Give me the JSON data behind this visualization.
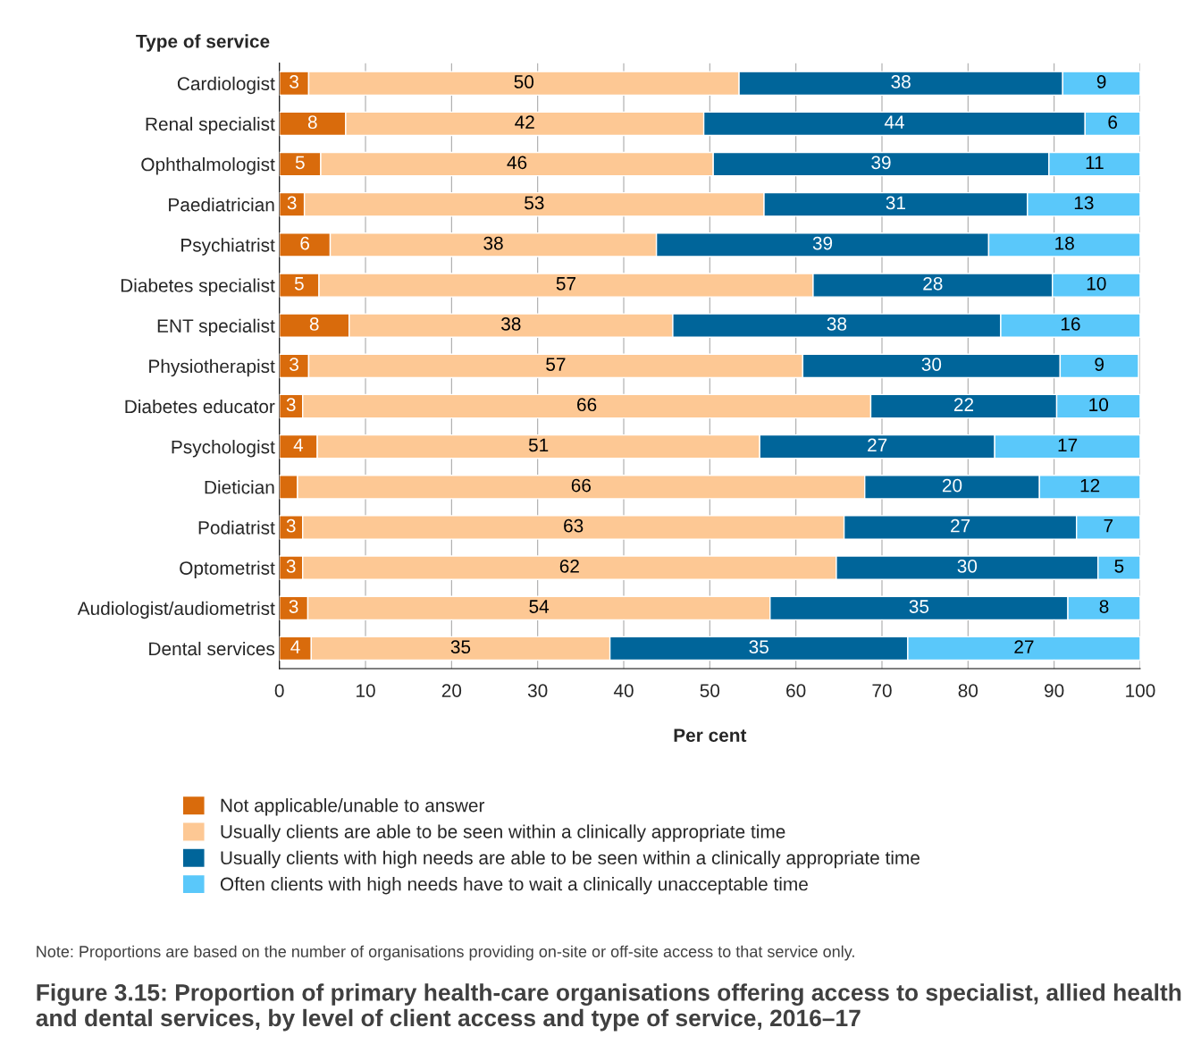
{
  "chart_data": {
    "type": "bar",
    "orientation": "horizontal",
    "stacked": true,
    "title": "Figure 3.15: Proportion of primary health-care organisations offering access to specialist, allied health and dental services, by level of client access and type of service, 2016–17",
    "ylabel": "Type of service",
    "xlabel": "Per cent",
    "categories": [
      "Cardiologist",
      "Renal specialist",
      "Ophthalmologist",
      "Paediatrician",
      "Psychiatrist",
      "Diabetes specialist",
      "ENT specialist",
      "Physiotherapist",
      "Diabetes educator",
      "Psychologist",
      "Dietician",
      "Podiatrist",
      "Optometrist",
      "Audiologist/audiometrist",
      "Dental services"
    ],
    "series": [
      {
        "name": "Not applicable/unable to answer",
        "color": "#d96b0c",
        "values": [
          3.4,
          7.7,
          4.8,
          2.9,
          5.9,
          4.6,
          8.1,
          3.4,
          2.7,
          4.4,
          2.1,
          2.7,
          2.7,
          3.3,
          3.7
        ],
        "value_labels": [
          "3",
          "8",
          "5",
          "3",
          "6",
          "5",
          "8",
          "3",
          "3",
          "4",
          null,
          "3",
          "3",
          "3",
          "4"
        ]
      },
      {
        "name": "Usually clients are able to be seen within a clinically appropriate time",
        "color": "#fdc894",
        "values": [
          50.0,
          41.6,
          45.6,
          53.4,
          37.9,
          57.4,
          37.6,
          57.4,
          66.0,
          51.4,
          65.9,
          62.9,
          62.0,
          53.7,
          34.7
        ],
        "value_labels": [
          "50",
          "42",
          "46",
          "53",
          "38",
          "57",
          "38",
          "57",
          "66",
          "51",
          "66",
          "63",
          "62",
          "54",
          "35"
        ]
      },
      {
        "name": "Usually clients with high needs are able to be seen within a clinically appropriate time",
        "color": "#00659a",
        "values": [
          37.6,
          44.3,
          39.0,
          30.6,
          38.6,
          27.8,
          38.1,
          29.9,
          21.6,
          27.3,
          20.3,
          27.0,
          30.4,
          34.6,
          34.6
        ],
        "value_labels": [
          "38",
          "44",
          "39",
          "31",
          "39",
          "28",
          "38",
          "30",
          "22",
          "27",
          "20",
          "27",
          "30",
          "35",
          "35"
        ]
      },
      {
        "name": "Often clients with high needs have to wait a clinically unacceptable time",
        "color": "#5ac8fa",
        "values": [
          9.0,
          6.4,
          10.6,
          13.1,
          17.6,
          10.2,
          16.2,
          9.1,
          9.7,
          16.9,
          11.7,
          7.4,
          4.9,
          8.4,
          27.0
        ],
        "value_labels": [
          "9",
          "6",
          "11",
          "13",
          "18",
          "10",
          "16",
          "9",
          "10",
          "17",
          "12",
          "7",
          "5",
          "8",
          "27"
        ]
      }
    ],
    "xlim": [
      0,
      100
    ],
    "xticks": [
      0,
      10,
      20,
      30,
      40,
      50,
      60,
      70,
      80,
      90,
      100
    ],
    "grid": "x",
    "legend": "bottom",
    "annotations": [
      "Note: Proportions are based on the number of organisations providing on-site or off-site access to that service only."
    ]
  }
}
